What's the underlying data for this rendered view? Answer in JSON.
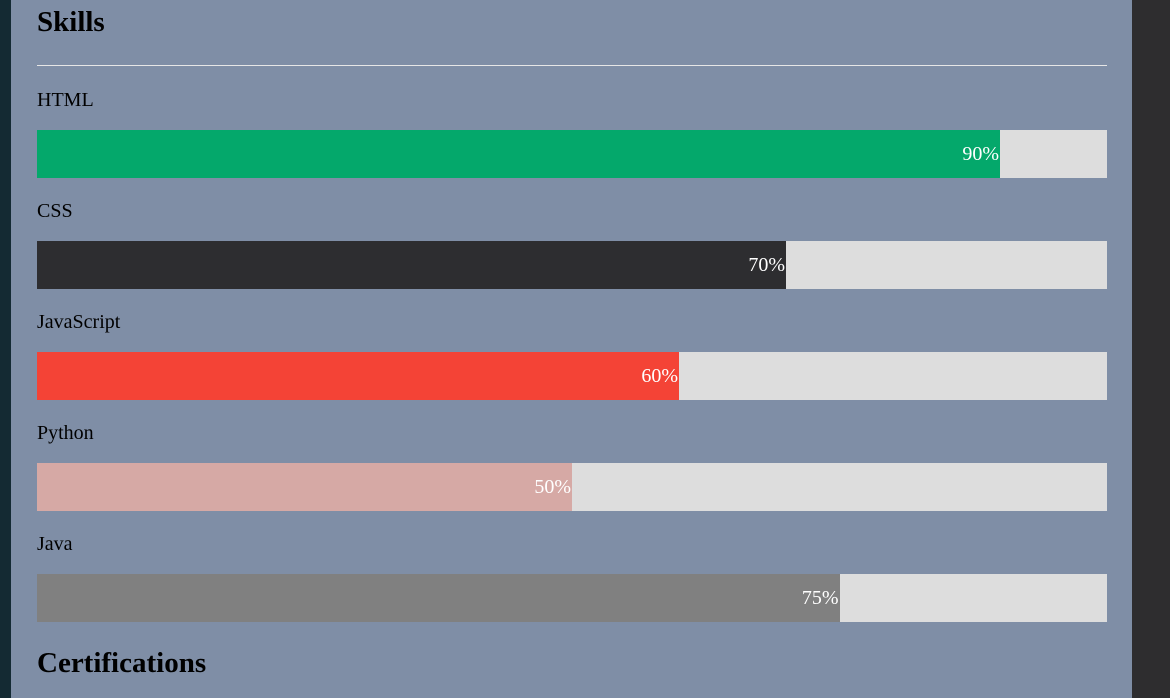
{
  "sections": {
    "skills_title": "Skills",
    "certifications_title": "Certifications"
  },
  "skills": [
    {
      "name": "HTML",
      "percent_label": "90%",
      "percent": 90,
      "color": "#04a86b"
    },
    {
      "name": "CSS",
      "percent_label": "70%",
      "percent": 70,
      "color": "#2d2d30"
    },
    {
      "name": "JavaScript",
      "percent_label": "60%",
      "percent": 60,
      "color": "#f44336"
    },
    {
      "name": "Python",
      "percent_label": "50%",
      "percent": 50,
      "color": "#d6a9a5"
    },
    {
      "name": "Java",
      "percent_label": "75%",
      "percent": 75,
      "color": "#808080"
    }
  ],
  "colors": {
    "panel_bg": "#7f8ea6",
    "track_bg": "#dddddd",
    "page_bg": "#2e2d2f"
  }
}
